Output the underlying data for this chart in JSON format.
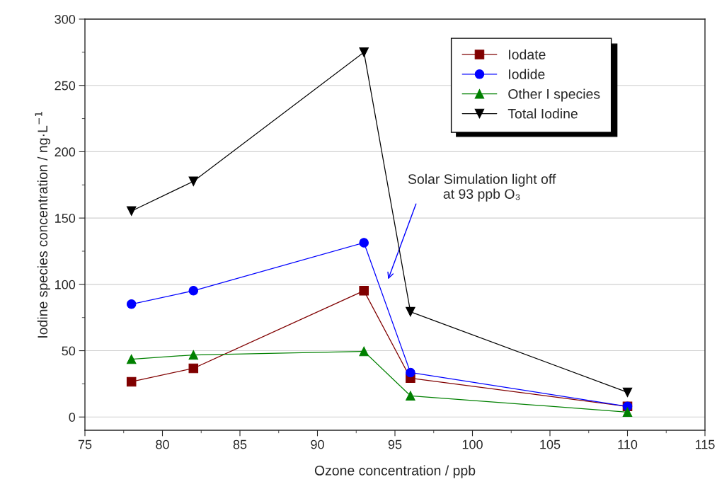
{
  "chart_data": {
    "type": "line",
    "xlabel": "Ozone concentration / ppb",
    "ylabel": "Iodine species concentration / ng·L$^{−1}$",
    "x": [
      78,
      82,
      93,
      96,
      110
    ],
    "series": [
      {
        "name": "Iodate",
        "color": "#800000",
        "marker": "square",
        "values": [
          26.6,
          36.7,
          95.2,
          29.3,
          8
        ]
      },
      {
        "name": "Iodide",
        "color": "#0000ff",
        "marker": "circle",
        "values": [
          85.1,
          95.2,
          131.4,
          33.5,
          8
        ]
      },
      {
        "name": "Other I species",
        "color": "#008000",
        "marker": "triangle",
        "values": [
          43.6,
          46.8,
          49.5,
          16,
          3.7
        ]
      },
      {
        "name": "Total Iodine",
        "color": "#000000",
        "marker": "triangle_down",
        "values": [
          155.3,
          177.7,
          275,
          79.3,
          18.6
        ]
      }
    ],
    "xlim": [
      75,
      115
    ],
    "xticks": [
      75,
      80,
      85,
      90,
      95,
      100,
      105,
      110,
      115
    ],
    "ylim": [
      -10,
      300
    ],
    "yticks": [
      0,
      50,
      100,
      150,
      200,
      250,
      300
    ],
    "grid": "y",
    "legend": "top right",
    "annotations": [
      "Solar Simulation light off\nat 93 ppb O₃"
    ]
  }
}
